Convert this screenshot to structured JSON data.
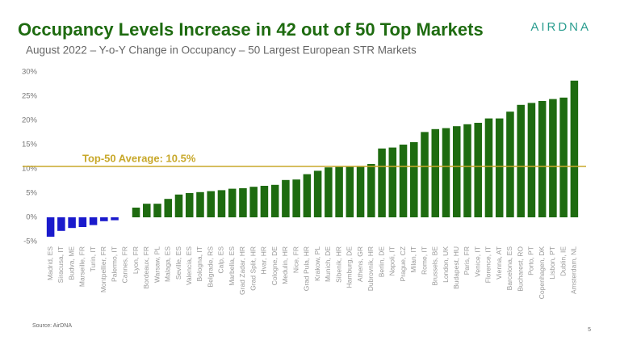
{
  "chart_data": {
    "type": "bar",
    "title": "Occupancy Levels Increase in 42 out of 50 Top Markets",
    "subtitle": "August 2022 – Y-o-Y Change in Occupancy – 50 Largest European STR Markets",
    "logo": "AIRDNA",
    "source": "Source: AirDNA",
    "page_number": "5",
    "categories": [
      "Madrid, ES",
      "Siracusa, IT",
      "Budva, ME",
      "Marseille, FR",
      "Turin, IT",
      "Montpellier, FR",
      "Palermo, IT",
      "Cannes, FR",
      "Lyon, FR",
      "Bordeaux, FR",
      "Warsaw, PL",
      "Malaga, ES",
      "Seville, ES",
      "Valencia, ES",
      "Bologna, IT",
      "Belgrade, RS",
      "Calp, ES",
      "Marbella, ES",
      "Grad Zadar, HR",
      "Grad Split, HR",
      "Hvar, HR",
      "Cologne, DE",
      "Medulin, HR",
      "Nice, FR",
      "Grad Pula, HR",
      "Krakow, PL",
      "Munich, DE",
      "Sibenik, HR",
      "Hamburg, DE",
      "Athens, GR",
      "Dubrovnik, HR",
      "Berlin, DE",
      "Napoli, IT",
      "Prague, CZ",
      "Milan, IT",
      "Rome, IT",
      "Brussels, BE",
      "London, UK",
      "Budapest, HU",
      "Paris, FR",
      "Venice, IT",
      "Florence, IT",
      "Vienna, AT",
      "Barcelona, ES",
      "Bucharest, RO",
      "Porto, PT",
      "Copenhagen, DK",
      "Lisbon, PT",
      "Dublin, IE",
      "Amsterdam, NL"
    ],
    "values": [
      -4.0,
      -2.8,
      -2.2,
      -2.0,
      -1.6,
      -0.8,
      -0.6,
      0,
      2.0,
      2.8,
      2.8,
      3.8,
      4.7,
      5.0,
      5.2,
      5.4,
      5.6,
      5.9,
      6.0,
      6.3,
      6.5,
      6.7,
      7.7,
      7.8,
      8.9,
      9.6,
      10.3,
      10.4,
      10.5,
      10.6,
      11.0,
      14.2,
      14.4,
      15.0,
      15.5,
      17.6,
      18.2,
      18.4,
      18.8,
      19.2,
      19.5,
      20.4,
      20.4,
      21.8,
      23.2,
      23.6,
      24.0,
      24.4,
      24.7,
      28.2
    ],
    "color_positive": "#1e6b10",
    "color_negative": "#1a1acc",
    "average": {
      "value": 10.5,
      "label": "Top-50 Average: 10.5%",
      "color": "#c8a82a"
    },
    "ylim": [
      -5,
      30
    ],
    "yticks": [
      {
        "value": -5,
        "label": "-5%"
      },
      {
        "value": 0,
        "label": "0%"
      },
      {
        "value": 5,
        "label": "5%"
      },
      {
        "value": 10,
        "label": "10%"
      },
      {
        "value": 15,
        "label": "15%"
      },
      {
        "value": 20,
        "label": "20%"
      },
      {
        "value": 25,
        "label": "25%"
      },
      {
        "value": 30,
        "label": "30%"
      }
    ],
    "grid": false
  }
}
